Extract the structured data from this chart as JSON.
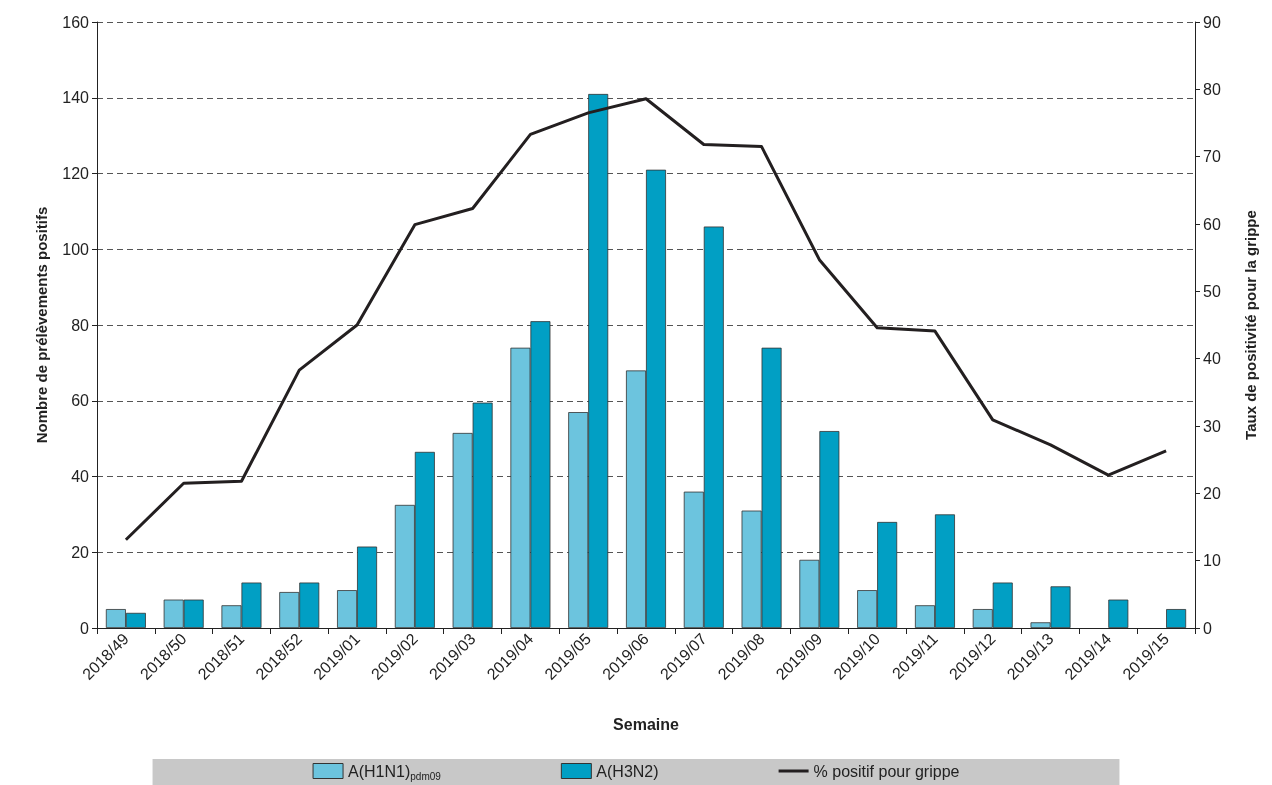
{
  "chart_data": {
    "type": "bar",
    "xlabel": "Semaine",
    "ylabel": "Nombre de prélèvements positifs",
    "y2label": "Taux de positivité pour la grippe",
    "categories": [
      "2018/49",
      "2018/50",
      "2018/51",
      "2018/52",
      "2019/01",
      "2019/02",
      "2019/03",
      "2019/04",
      "2019/05",
      "2019/06",
      "2019/07",
      "2019/08",
      "2019/09",
      "2019/10",
      "2019/11",
      "2019/12",
      "2019/13",
      "2019/14",
      "2019/15"
    ],
    "series": [
      {
        "name": "A(H1N1)$_{pdm09}$",
        "color": "#6cc4de",
        "values": [
          5,
          7.5,
          6,
          9.5,
          10,
          32.5,
          51.5,
          74,
          57,
          68,
          36,
          31,
          18,
          10,
          6,
          5,
          1.5,
          0,
          0
        ]
      },
      {
        "name": "A(H3N2)",
        "color": "#019fc4",
        "values": [
          4,
          7.5,
          12,
          12,
          21.5,
          46.5,
          59.5,
          81,
          141,
          121,
          106,
          74,
          52,
          28,
          30,
          12,
          11,
          7.5,
          5
        ]
      },
      {
        "name": "% positif pour grippe",
        "type": "line",
        "axis": "y2",
        "color": "#231f20",
        "values": [
          13.1,
          21.5,
          21.8,
          38.3,
          45,
          59.9,
          62.3,
          73.3,
          76.5,
          78.6,
          71.8,
          71.5,
          54.7,
          44.6,
          44.1,
          30.9,
          27.2,
          22.7,
          26.3
        ]
      }
    ],
    "ylim": [
      0,
      160
    ],
    "yticks": [
      0,
      20,
      40,
      60,
      80,
      100,
      120,
      140,
      160
    ],
    "y2lim": [
      0,
      90
    ],
    "y2ticks": [
      0,
      10,
      20,
      30,
      40,
      50,
      60,
      70,
      80,
      90
    ],
    "grid": "y",
    "legend": "bottom",
    "marker": "none",
    "line_style": "solid"
  }
}
